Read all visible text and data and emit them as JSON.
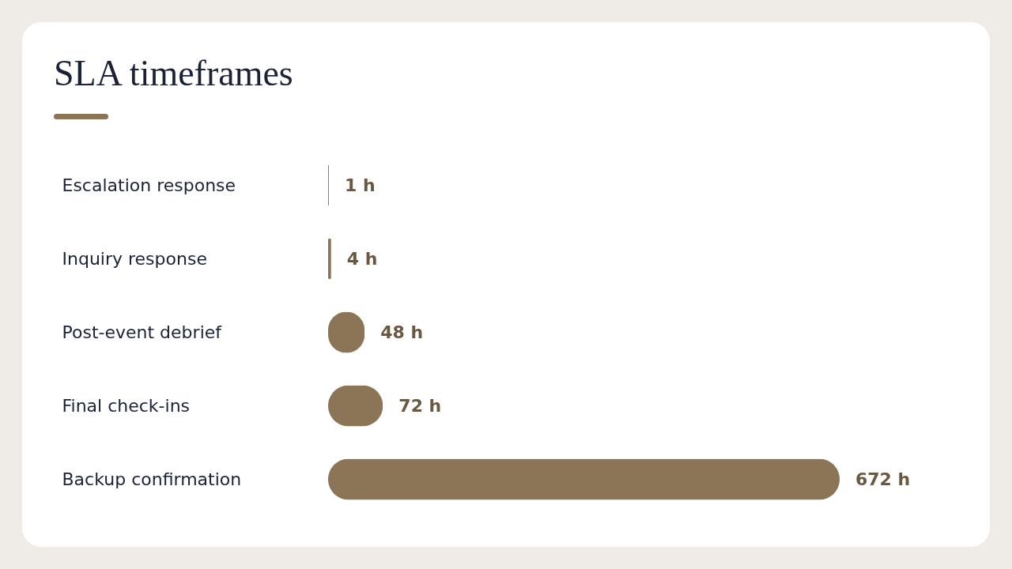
{
  "chart_data": {
    "type": "bar",
    "title": "SLA timeframes",
    "orientation": "horizontal",
    "categories": [
      "Escalation response",
      "Inquiry response",
      "Post-event debrief",
      "Final check-ins",
      "Backup confirmation"
    ],
    "values": [
      1,
      4,
      48,
      72,
      672
    ],
    "value_labels": [
      "1 h",
      "4 h",
      "48 h",
      "72 h",
      "672 h"
    ],
    "color": "#8c7456"
  }
}
